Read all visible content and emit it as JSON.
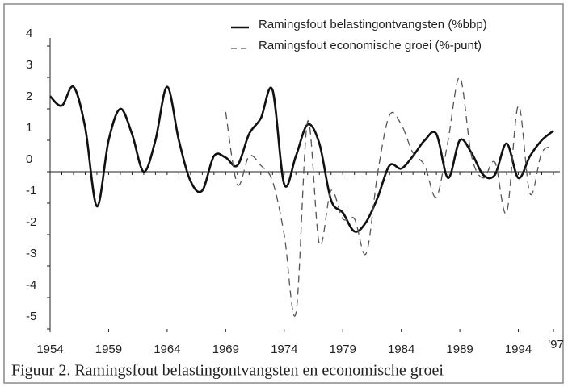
{
  "chart_data": {
    "type": "line",
    "caption": "Figuur 2. Ramingsfout belastingontvangsten en economische groei",
    "x": [
      1954,
      1955,
      1956,
      1957,
      1958,
      1959,
      1960,
      1961,
      1962,
      1963,
      1964,
      1965,
      1966,
      1967,
      1968,
      1969,
      1970,
      1971,
      1972,
      1973,
      1974,
      1975,
      1976,
      1977,
      1978,
      1979,
      1980,
      1981,
      1982,
      1983,
      1984,
      1985,
      1986,
      1987,
      1988,
      1989,
      1990,
      1991,
      1992,
      1993,
      1994,
      1995,
      1996,
      1997
    ],
    "series": [
      {
        "name": "Ramingsfout belastingontvangsten (%bbp)",
        "color": "#111111",
        "dash": false,
        "values": [
          2.4,
          2.1,
          2.7,
          1.4,
          -1.1,
          1.0,
          2.0,
          1.2,
          0.0,
          1.0,
          2.7,
          1.0,
          -0.3,
          -0.6,
          0.5,
          0.45,
          0.2,
          1.2,
          1.7,
          2.6,
          -0.4,
          0.5,
          1.5,
          0.9,
          -0.9,
          -1.3,
          -1.9,
          -1.6,
          -0.8,
          0.2,
          0.1,
          0.5,
          1.0,
          1.2,
          -0.2,
          1.0,
          0.6,
          -0.1,
          -0.1,
          0.9,
          -0.2,
          0.5,
          1.0,
          1.3
        ]
      },
      {
        "name": "Ramingsfout economische groei (%-punt)",
        "color": "#555555",
        "dash": true,
        "values": [
          null,
          null,
          null,
          null,
          null,
          null,
          null,
          null,
          null,
          null,
          null,
          null,
          null,
          null,
          null,
          1.9,
          -0.4,
          0.5,
          0.2,
          -0.3,
          -2.0,
          -4.5,
          1.6,
          -2.3,
          -0.6,
          -1.5,
          -1.5,
          -2.6,
          0.0,
          1.8,
          1.5,
          0.6,
          0.2,
          -0.8,
          1.0,
          3.0,
          0.5,
          -0.2,
          0.3,
          -1.3,
          2.1,
          -0.7,
          0.6,
          0.8
        ]
      }
    ],
    "xlim": [
      1954,
      1997
    ],
    "xticks": [
      1954,
      1959,
      1964,
      1969,
      1974,
      1979,
      1984,
      1989,
      1994,
      {
        "value": 1997,
        "label": "'97"
      }
    ],
    "ylim": [
      -5,
      4
    ],
    "yticks": [
      -5,
      -4,
      -3,
      -2,
      -1,
      0,
      1,
      2,
      3,
      4
    ],
    "legend": "top-right"
  }
}
